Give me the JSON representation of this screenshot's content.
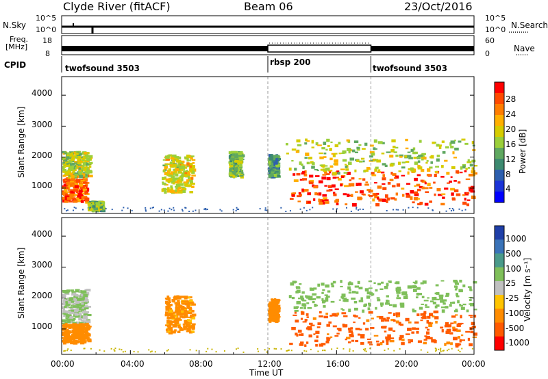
{
  "header": {
    "site": "Clyde River (fitACF)",
    "beam": "Beam 06",
    "date": "23/Oct/2016"
  },
  "strips": {
    "nsky_label": "N.Sky",
    "nsky_ticks": [
      "10^5",
      "10^0"
    ],
    "nsearch_label": "N.Search",
    "nsearch_ticks": [
      "10^5",
      "10^0"
    ],
    "freq_label_1": "Freq.",
    "freq_label_2": "[MHz]",
    "freq_ticks": [
      "18",
      "8"
    ],
    "nave_label": "Nave",
    "nave_ticks": [
      "60",
      "0"
    ],
    "cpid_label": "CPID",
    "cpid_segments": [
      {
        "label": "twofsound 3503",
        "start_h": 0
      },
      {
        "label": "rbsp 200",
        "start_h": 12
      },
      {
        "label": "twofsound 3503",
        "start_h": 18
      }
    ]
  },
  "time_axis": {
    "ticks": [
      "00:00",
      "04:00",
      "08:00",
      "12:00",
      "16:00",
      "20:00",
      "00:00"
    ],
    "label": "Time UT"
  },
  "power_panel": {
    "ylabel": "Slant Range [km]",
    "yticks": [
      "4000",
      "3000",
      "2000",
      "1000"
    ],
    "cbar_label": "Power [dB]",
    "cbar_ticks": [
      "28",
      "24",
      "20",
      "16",
      "12",
      "8",
      "4"
    ],
    "cbar_colors": [
      "#ff0000",
      "#ff4a00",
      "#ff7d00",
      "#ffb000",
      "#d6cc00",
      "#9bcf3a",
      "#5fa860",
      "#3d8a70",
      "#2d5fae",
      "#1b34d8",
      "#0000ff"
    ]
  },
  "velocity_panel": {
    "ylabel": "Slant Range [km]",
    "yticks": [
      "4000",
      "3000",
      "2000",
      "1000"
    ],
    "cbar_label": "Velocity [m s⁻¹]",
    "cbar_ticks": [
      "1000",
      "500",
      "100",
      "25",
      "-25",
      "-100",
      "-500",
      "-1000"
    ],
    "cbar_colors": [
      "#1f3fa8",
      "#3a73b8",
      "#4a9a8a",
      "#7fbf5a",
      "#c0c0c0",
      "#ffc400",
      "#ff8c00",
      "#ff5a00",
      "#ff0000"
    ]
  },
  "chart_data": [
    {
      "type": "heatmap",
      "title": "Clyde River (fitACF) Beam 06 23/Oct/2016",
      "xlabel": "Time UT",
      "ylabel": "Slant Range [km]",
      "xlim": [
        "00:00",
        "24:00"
      ],
      "ylim": [
        180,
        4600
      ],
      "colorbar": "Power [dB]",
      "zlim": [
        0,
        30
      ],
      "blobs": [
        {
          "t0": 0.0,
          "t1": 1.4,
          "r0": 600,
          "r1": 1500,
          "z": 26
        },
        {
          "t0": 0.0,
          "t1": 1.6,
          "r0": 1400,
          "r1": 2200,
          "z": 16
        },
        {
          "t0": 1.5,
          "t1": 2.3,
          "r0": 300,
          "r1": 600,
          "z": 14
        },
        {
          "t0": 5.8,
          "t1": 7.6,
          "r0": 900,
          "r1": 2100,
          "z": 18
        },
        {
          "t0": 9.7,
          "t1": 10.4,
          "r0": 1400,
          "r1": 2200,
          "z": 14
        },
        {
          "t0": 12.0,
          "t1": 12.5,
          "r0": 1400,
          "r1": 2100,
          "z": 10
        },
        {
          "t0": 13.2,
          "t1": 24.0,
          "r0": 500,
          "r1": 1600,
          "z": 27
        },
        {
          "t0": 13.0,
          "t1": 24.0,
          "r0": 1500,
          "r1": 2600,
          "z": 16
        }
      ]
    },
    {
      "type": "heatmap",
      "title": "Clyde River (fitACF) Beam 06 23/Oct/2016",
      "xlabel": "Time UT",
      "ylabel": "Slant Range [km]",
      "xlim": [
        "00:00",
        "24:00"
      ],
      "ylim": [
        180,
        4600
      ],
      "colorbar": "Velocity [m s⁻¹]",
      "zlim": [
        -1000,
        1000
      ],
      "blobs": [
        {
          "t0": 0.0,
          "t1": 1.5,
          "r0": 1200,
          "r1": 2300,
          "z": 25
        },
        {
          "t0": 0.0,
          "t1": 1.5,
          "r0": 600,
          "r1": 1200,
          "z": -300
        },
        {
          "t0": 6.0,
          "t1": 7.6,
          "r0": 900,
          "r1": 2100,
          "z": -150
        },
        {
          "t0": 12.0,
          "t1": 12.5,
          "r0": 1300,
          "r1": 2000,
          "z": -200
        },
        {
          "t0": 13.2,
          "t1": 24.0,
          "r0": 500,
          "r1": 1600,
          "z": -700
        },
        {
          "t0": 13.2,
          "t1": 24.0,
          "r0": 1600,
          "r1": 2600,
          "z": 50
        }
      ]
    }
  ]
}
